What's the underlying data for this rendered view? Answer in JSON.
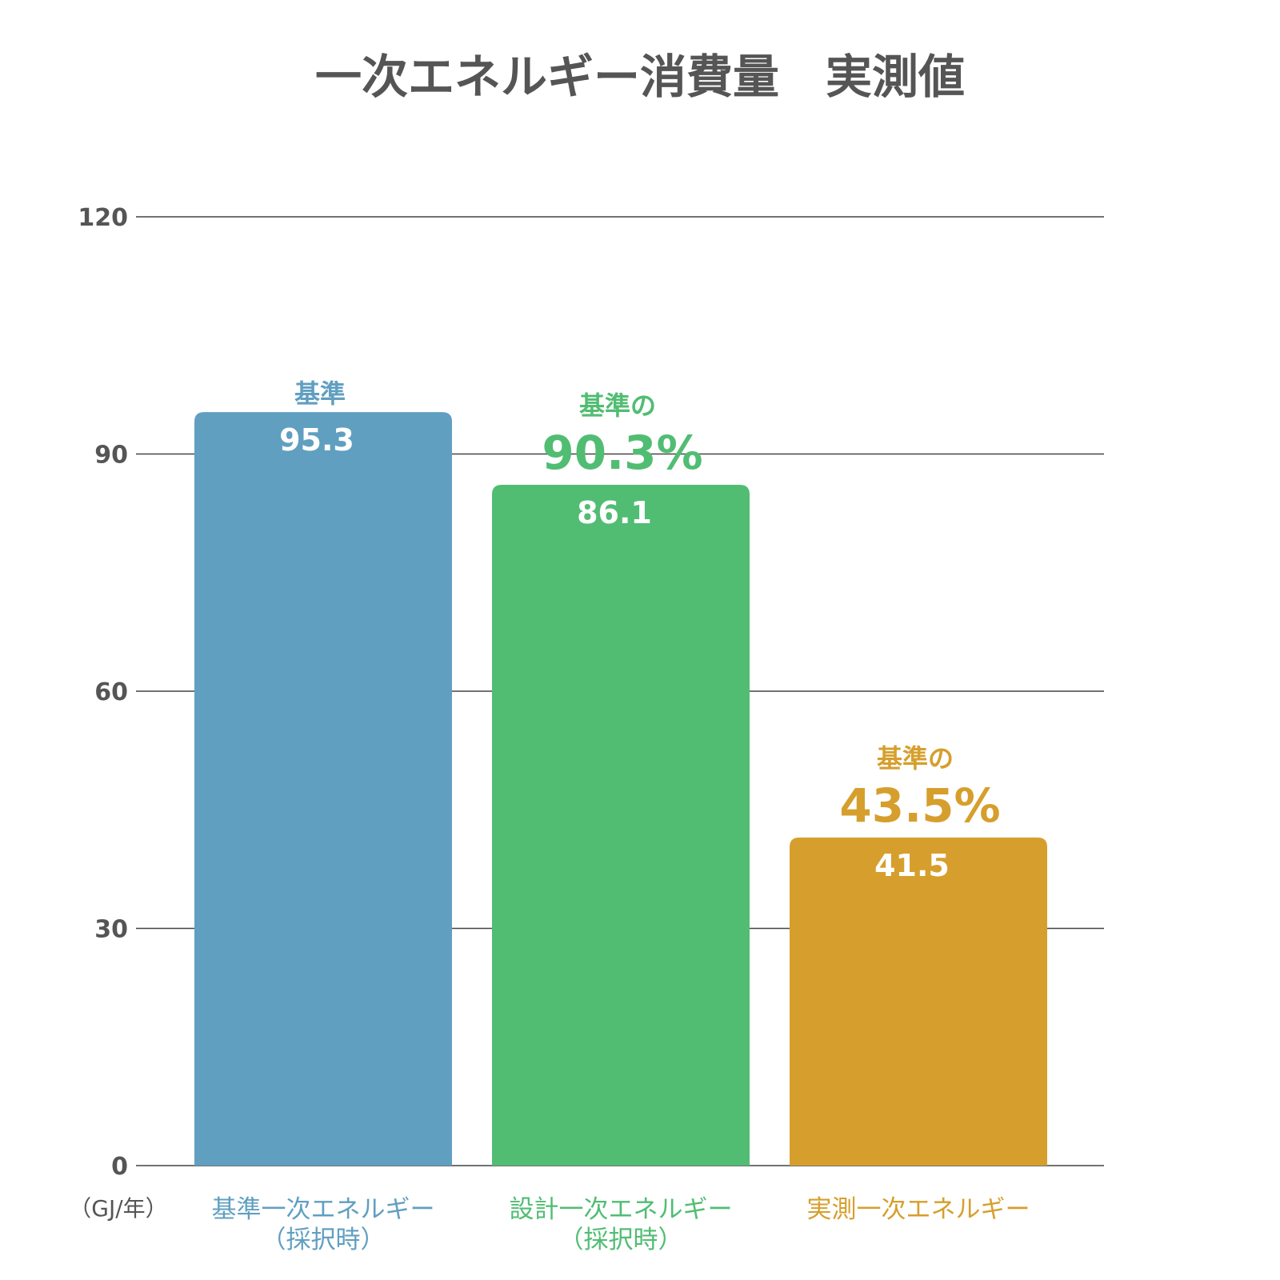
{
  "chart_data": {
    "type": "bar",
    "title": "一次エネルギー消費量　実測値",
    "unit_label": "（GJ/年）",
    "ylim": [
      0,
      120
    ],
    "yticks": [
      0,
      30,
      60,
      90,
      120
    ],
    "grid": true,
    "categories": [
      [
        "基準一次エネルギー",
        "（採択時）"
      ],
      [
        "設計一次エネルギー",
        "（採択時）"
      ],
      [
        "実測一次エネルギー"
      ]
    ],
    "values": [
      95.3,
      86.1,
      41.5
    ],
    "value_labels": [
      "95.3",
      "86.1",
      "41.5"
    ],
    "annotations": [
      {
        "line1": "基準",
        "line2": ""
      },
      {
        "line1": "基準の",
        "line2": "90.3%"
      },
      {
        "line1": "基準の",
        "line2": "43.5%"
      }
    ],
    "colors": [
      "#619fc1",
      "#51bd73",
      "#d69f2d"
    ]
  }
}
